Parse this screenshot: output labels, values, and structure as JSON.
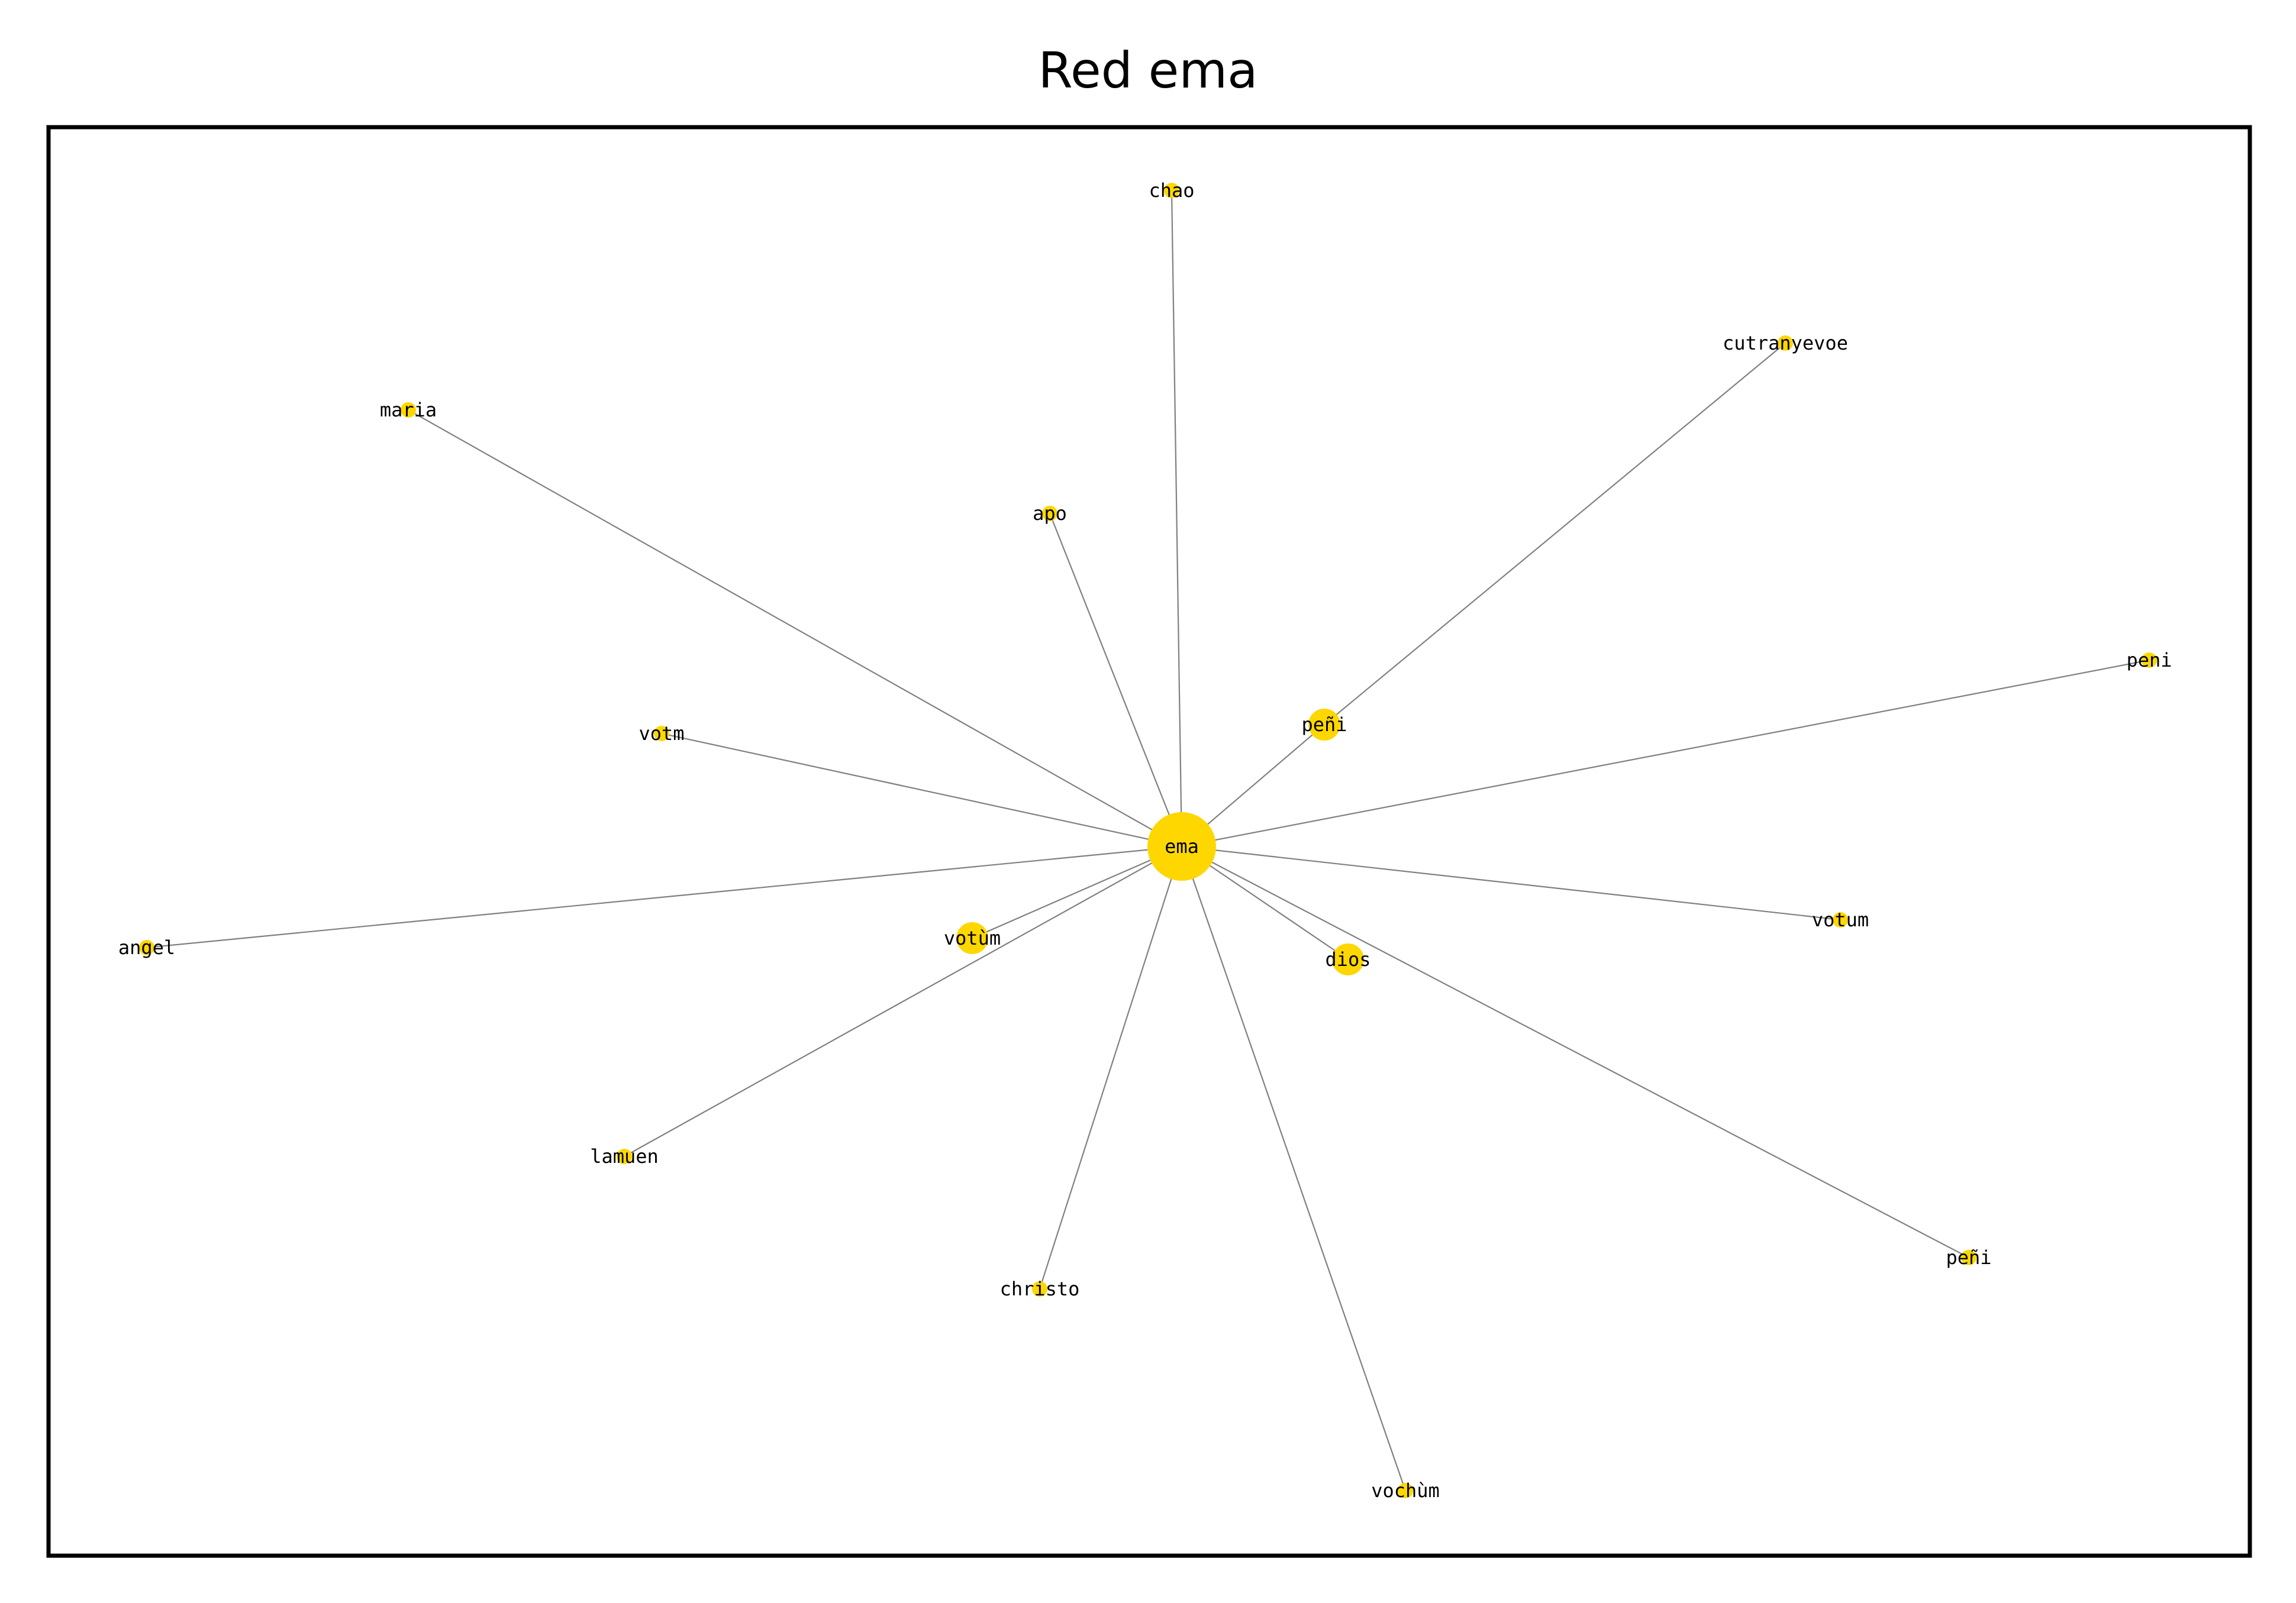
{
  "title": "Red ema",
  "colors": {
    "node_fill": "#FFD700",
    "edge": "#808080",
    "frame": "#000000",
    "background": "#FFFFFF"
  },
  "graph": {
    "center": "ema",
    "nodes": [
      {
        "id": "ema",
        "label": "ema",
        "size": "large"
      },
      {
        "id": "chao",
        "label": "chao",
        "size": "small"
      },
      {
        "id": "cutranyevoe",
        "label": "cutranyevoe",
        "size": "small"
      },
      {
        "id": "maria",
        "label": "maria",
        "size": "small"
      },
      {
        "id": "apo",
        "label": "apo",
        "size": "small"
      },
      {
        "id": "peni",
        "label": "peni",
        "size": "small"
      },
      {
        "id": "peñi_1",
        "label": "peñi",
        "size": "medium"
      },
      {
        "id": "votm",
        "label": "votm",
        "size": "small"
      },
      {
        "id": "angel",
        "label": "angel",
        "size": "small"
      },
      {
        "id": "votùm",
        "label": "votùm",
        "size": "medium"
      },
      {
        "id": "dios",
        "label": "dios",
        "size": "medium"
      },
      {
        "id": "votum",
        "label": "votum",
        "size": "small"
      },
      {
        "id": "lamuen",
        "label": "lamuen",
        "size": "small"
      },
      {
        "id": "christo",
        "label": "christo",
        "size": "small"
      },
      {
        "id": "peñi_2",
        "label": "peñi",
        "size": "small"
      },
      {
        "id": "vochùm",
        "label": "vochùm",
        "size": "small"
      }
    ],
    "edges": [
      [
        "ema",
        "chao"
      ],
      [
        "ema",
        "maria"
      ],
      [
        "ema",
        "apo"
      ],
      [
        "ema",
        "peñi_1"
      ],
      [
        "peñi_1",
        "cutranyevoe"
      ],
      [
        "ema",
        "peni"
      ],
      [
        "ema",
        "votm"
      ],
      [
        "ema",
        "angel"
      ],
      [
        "ema",
        "votùm"
      ],
      [
        "ema",
        "dios"
      ],
      [
        "ema",
        "votum"
      ],
      [
        "ema",
        "lamuen"
      ],
      [
        "ema",
        "christo"
      ],
      [
        "ema",
        "peñi_2"
      ],
      [
        "ema",
        "vochùm"
      ]
    ]
  }
}
